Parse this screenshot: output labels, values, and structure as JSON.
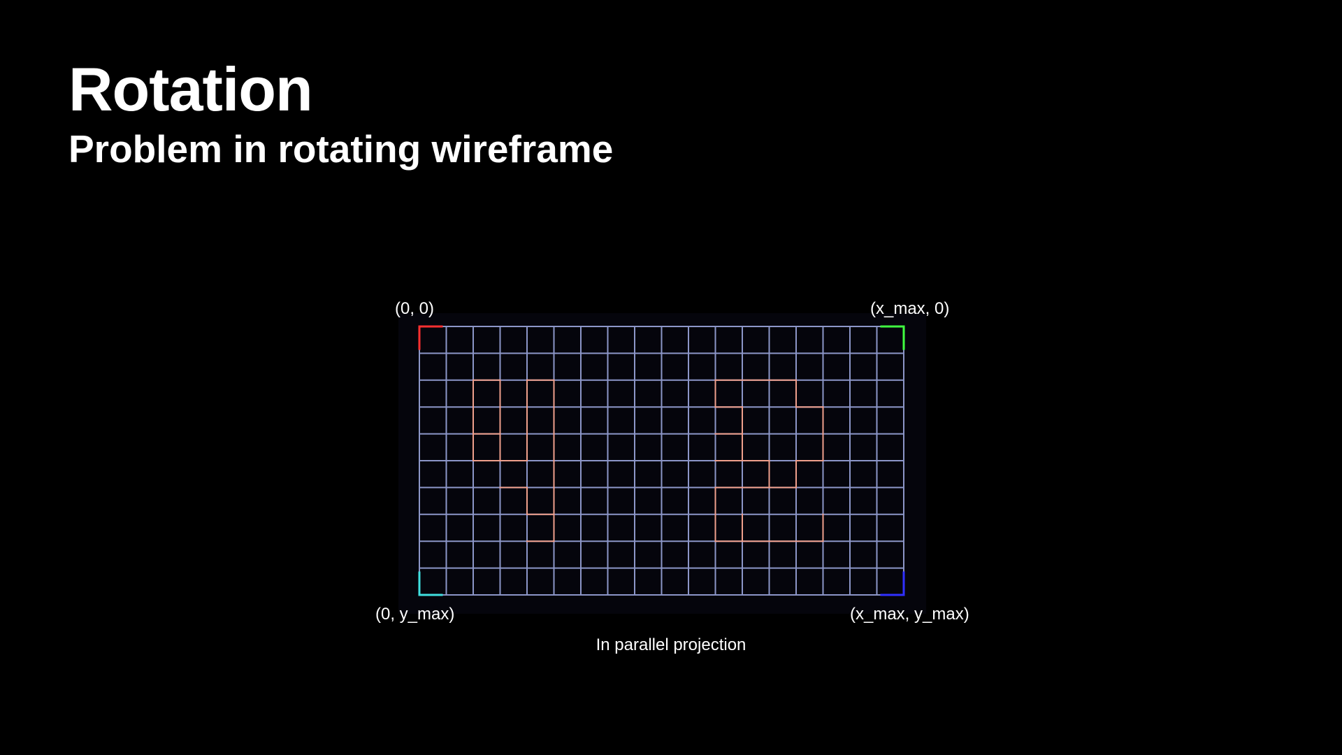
{
  "slide": {
    "title": "Rotation",
    "subtitle": "Problem in rotating wireframe"
  },
  "figure": {
    "corners": {
      "top_left": "(0, 0)",
      "top_right": "(x_max, 0)",
      "bottom_left": "(0, y_max)",
      "bottom_right": "(x_max, y_max)"
    },
    "caption": "In parallel projection",
    "grid": {
      "columns": 18,
      "rows": 10
    },
    "colors": {
      "background": "#000000",
      "panel": "#05050c",
      "grid_line": "#8c96c8",
      "digit_line": "#f0a08c",
      "corner_top_left": "#ff3030",
      "corner_top_right": "#40ff40",
      "corner_bottom_left": "#40e0e0",
      "corner_bottom_right": "#3030ff"
    }
  }
}
